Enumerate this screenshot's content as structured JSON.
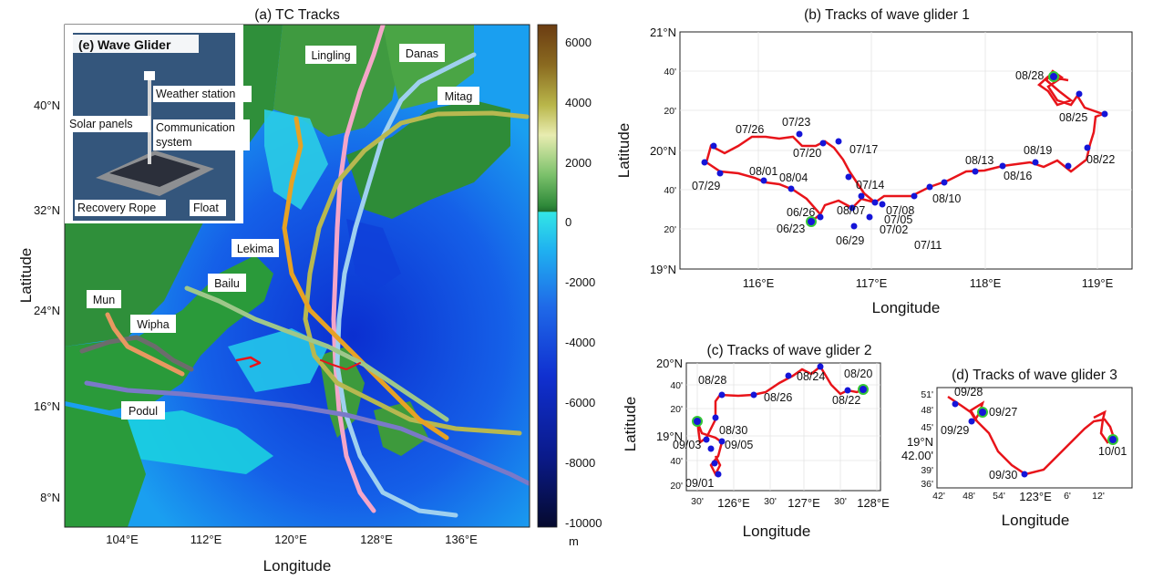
{
  "panel_a": {
    "title": "(a) TC Tracks",
    "xlabel": "Longitude",
    "ylabel": "Latitude",
    "lon_ticks": [
      "104°E",
      "112°E",
      "120°E",
      "128°E",
      "136°E"
    ],
    "lat_ticks": [
      "40°N",
      "32°N",
      "24°N",
      "16°N",
      "8°N"
    ],
    "colorbar_ticks": [
      "6000",
      "4000",
      "2000",
      "0",
      "-2000",
      "-4000",
      "-6000",
      "-8000",
      "-10000"
    ],
    "colorbar_unit": "m",
    "typhoons": [
      "Lingling",
      "Danas",
      "Mitag",
      "Lekima",
      "Bailu",
      "Mun",
      "Wipha",
      "Podul"
    ],
    "inset": {
      "title": "(e) Wave Glider",
      "labels": [
        "Weather station",
        "Solar panels",
        "Communication system",
        "Recovery Rope",
        "Float"
      ]
    }
  },
  "panel_b": {
    "title": "(b) Tracks of wave glider 1",
    "xlabel": "Longitude",
    "ylabel": "Latitude",
    "lon_ticks": [
      "116°E",
      "117°E",
      "118°E",
      "119°E"
    ],
    "lat_ticks": [
      "21°N",
      "40'",
      "20'",
      "20°N",
      "40'",
      "20'",
      "19°N"
    ],
    "dates": [
      "08/28",
      "08/25",
      "08/22",
      "08/19",
      "08/16",
      "08/13",
      "08/10",
      "07/11",
      "07/26",
      "07/23",
      "07/20",
      "07/17",
      "07/29",
      "08/01",
      "08/04",
      "07/14",
      "07/08",
      "07/05",
      "07/02",
      "08/07",
      "06/26",
      "06/23",
      "06/29"
    ]
  },
  "panel_c": {
    "title": "(c) Tracks of wave glider 2",
    "xlabel": "Longitude",
    "ylabel": "Latitude",
    "lon_ticks": [
      "30'",
      "126°E",
      "30'",
      "127°E",
      "30'",
      "128°E"
    ],
    "lat_ticks": [
      "20°N",
      "40'",
      "20'",
      "19°N",
      "40'",
      "20'"
    ],
    "dates": [
      "08/28",
      "08/24",
      "08/20",
      "08/26",
      "08/22",
      "08/30",
      "09/03",
      "09/05",
      "09/01"
    ]
  },
  "panel_d": {
    "title": "(d) Tracks of wave glider 3",
    "xlabel": "Longitude",
    "ylabel_ticks": [
      "51'",
      "48'",
      "45'",
      "19°N",
      "42.00'",
      "39'",
      "36'"
    ],
    "lon_ticks": [
      "42'",
      "48'",
      "54'",
      "123°E",
      "6'",
      "12'"
    ],
    "dates": [
      "09/28",
      "09/27",
      "09/29",
      "09/30",
      "10/01"
    ]
  },
  "colors": {
    "glider_track": "#e8141a",
    "glider_dot": "#1515d8",
    "start_marker": "#35c735"
  }
}
